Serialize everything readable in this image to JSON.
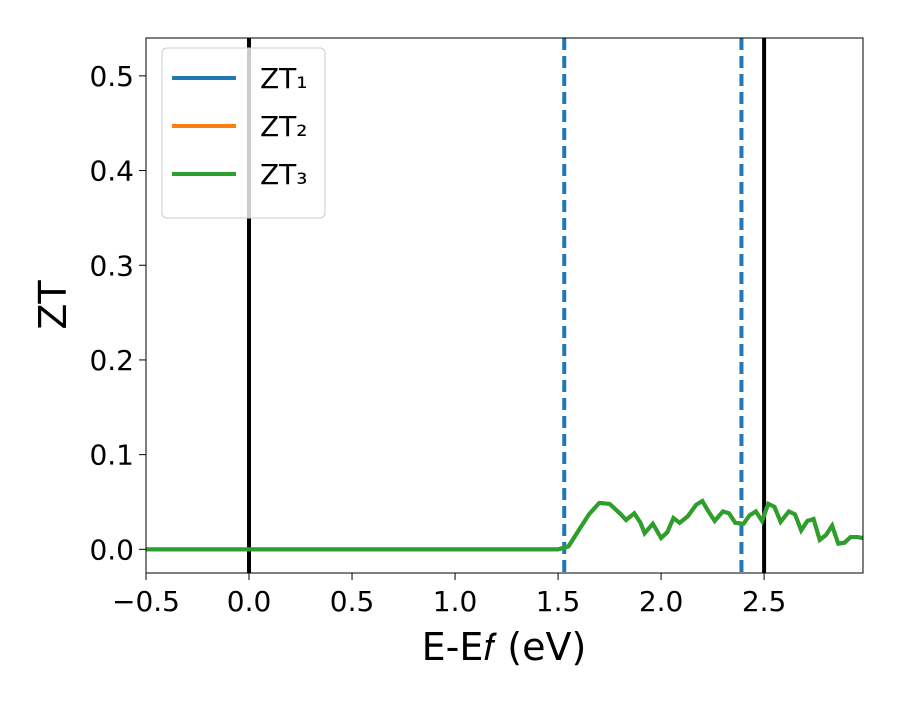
{
  "chart_data": {
    "type": "line",
    "xlabel": "E-E𝑓 (eV)",
    "ylabel": "ZT",
    "xlim": [
      -0.5,
      2.98
    ],
    "ylim": [
      -0.025,
      0.54
    ],
    "xticks": [
      {
        "value": -0.5,
        "label": "−0.5"
      },
      {
        "value": 0,
        "label": "0.0"
      },
      0.5,
      {
        "value": 1,
        "label": "1.0"
      },
      1.5,
      {
        "value": 2,
        "label": "2.0"
      },
      2.5
    ],
    "yticks": [
      {
        "value": 0,
        "label": "0.0"
      },
      0.1,
      0.2,
      0.3,
      0.4,
      0.5
    ],
    "legend": "upper-left",
    "vlines": [
      {
        "x": 0,
        "color": "#000000",
        "style": "solid"
      },
      {
        "x": 2.5,
        "color": "#000000",
        "style": "solid"
      },
      {
        "x": 1.53,
        "color": "#1f77b4",
        "style": "dashed"
      },
      {
        "x": 2.39,
        "color": "#1f77b4",
        "style": "dashed"
      }
    ],
    "x": [
      -0.5,
      0,
      0.5,
      1.0,
      1.4,
      1.5,
      1.55,
      1.6,
      1.65,
      1.7,
      1.75,
      1.8,
      1.83,
      1.87,
      1.9,
      1.92,
      1.96,
      2.0,
      2.03,
      2.06,
      2.09,
      2.13,
      2.17,
      2.2,
      2.23,
      2.26,
      2.3,
      2.33,
      2.36,
      2.4,
      2.43,
      2.46,
      2.49,
      2.52,
      2.55,
      2.58,
      2.62,
      2.65,
      2.68,
      2.71,
      2.74,
      2.77,
      2.8,
      2.83,
      2.86,
      2.89,
      2.92,
      2.95,
      2.98
    ],
    "series": [
      {
        "name": "ZT₁",
        "color": "#1f77b4",
        "values": [
          0,
          0,
          0,
          0,
          0,
          0,
          0.003,
          0.02,
          0.037,
          0.049,
          0.048,
          0.038,
          0.031,
          0.038,
          0.028,
          0.017,
          0.027,
          0.012,
          0.018,
          0.033,
          0.028,
          0.035,
          0.047,
          0.051,
          0.04,
          0.03,
          0.04,
          0.038,
          0.028,
          0.027,
          0.036,
          0.04,
          0.03,
          0.048,
          0.045,
          0.029,
          0.04,
          0.037,
          0.02,
          0.03,
          0.032,
          0.01,
          0.015,
          0.025,
          0.006,
          0.007,
          0.013,
          0.013,
          0.012
        ]
      },
      {
        "name": "ZT₂",
        "color": "#ff7f0e",
        "values": [
          0,
          0,
          0,
          0,
          0,
          0,
          0.003,
          0.02,
          0.037,
          0.049,
          0.048,
          0.038,
          0.031,
          0.038,
          0.028,
          0.017,
          0.027,
          0.012,
          0.018,
          0.033,
          0.028,
          0.035,
          0.047,
          0.051,
          0.04,
          0.03,
          0.04,
          0.038,
          0.028,
          0.027,
          0.036,
          0.04,
          0.03,
          0.048,
          0.045,
          0.029,
          0.04,
          0.037,
          0.02,
          0.03,
          0.032,
          0.01,
          0.015,
          0.025,
          0.006,
          0.007,
          0.013,
          0.013,
          0.012
        ]
      },
      {
        "name": "ZT₃",
        "color": "#2ca02c",
        "values": [
          0,
          0,
          0,
          0,
          0,
          0,
          0.003,
          0.02,
          0.037,
          0.049,
          0.048,
          0.038,
          0.031,
          0.038,
          0.028,
          0.017,
          0.027,
          0.012,
          0.018,
          0.033,
          0.028,
          0.035,
          0.047,
          0.051,
          0.04,
          0.03,
          0.04,
          0.038,
          0.028,
          0.027,
          0.036,
          0.04,
          0.03,
          0.048,
          0.045,
          0.029,
          0.04,
          0.037,
          0.02,
          0.03,
          0.032,
          0.01,
          0.015,
          0.025,
          0.006,
          0.007,
          0.013,
          0.013,
          0.012
        ]
      }
    ]
  }
}
